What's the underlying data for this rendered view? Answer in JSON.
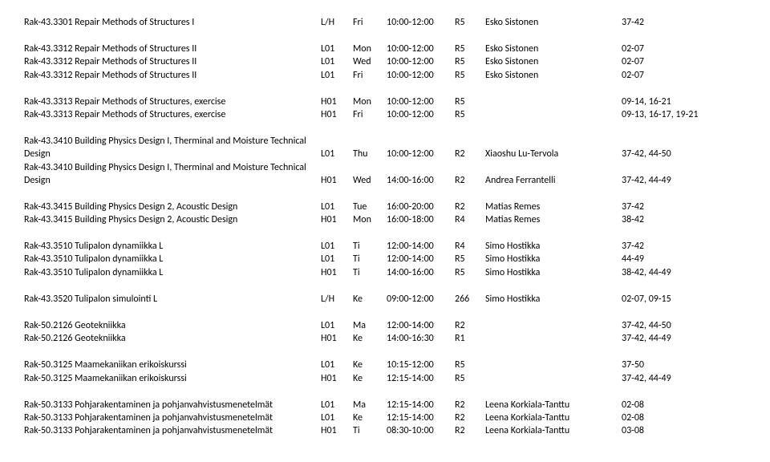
{
  "rows": [
    {
      "course": "Rak-43.3301 Repair Methods of Structures I",
      "type": "L/H",
      "day": "Fri",
      "time": "10:00-12:00",
      "room": "R5",
      "teacher": "Esko Sistonen",
      "weeks": "37-42"
    },
    null,
    {
      "course": "Rak-43.3312 Repair Methods of Structures II",
      "type": "L01",
      "day": "Mon",
      "time": "10:00-12:00",
      "room": "R5",
      "teacher": "Esko Sistonen",
      "weeks": "02-07"
    },
    {
      "course": "Rak-43.3312 Repair Methods of Structures II",
      "type": "L01",
      "day": "Wed",
      "time": "10:00-12:00",
      "room": "R5",
      "teacher": "Esko Sistonen",
      "weeks": "02-07"
    },
    {
      "course": "Rak-43.3312 Repair Methods of Structures II",
      "type": "L01",
      "day": "Fri",
      "time": "10:00-12:00",
      "room": "R5",
      "teacher": "Esko Sistonen",
      "weeks": "02-07"
    },
    null,
    {
      "course": "Rak-43.3313 Repair Methods of Structures, exercise",
      "type": "H01",
      "day": "Mon",
      "time": "10:00-12:00",
      "room": "R5",
      "teacher": "",
      "weeks": "09-14, 16-21"
    },
    {
      "course": "Rak-43.3313 Repair Methods of Structures, exercise",
      "type": "H01",
      "day": "Fri",
      "time": "10:00-12:00",
      "room": "R5",
      "teacher": "",
      "weeks": "09-13, 16-17, 19-21"
    },
    null,
    {
      "course": "Rak-43.3410 Building Physics Design I, Therminal and Moisture Technical",
      "cont": true
    },
    {
      "course": "Design",
      "type": "L01",
      "day": "Thu",
      "time": "10:00-12:00",
      "room": "R2",
      "teacher": "Xiaoshu Lu-Tervola",
      "weeks": "37-42, 44-50"
    },
    {
      "course": "Rak-43.3410 Building Physics Design I, Therminal and Moisture Technical",
      "cont": true
    },
    {
      "course": "Design",
      "type": "H01",
      "day": "Wed",
      "time": "14:00-16:00",
      "room": "R2",
      "teacher": "Andrea Ferrantelli",
      "weeks": "37-42, 44-49"
    },
    null,
    {
      "course": "Rak-43.3415 Building Physics Design 2, Acoustic Design",
      "type": "L01",
      "day": "Tue",
      "time": "16:00-20:00",
      "room": "R2",
      "teacher": "Matias Remes",
      "weeks": "37-42"
    },
    {
      "course": "Rak-43.3415 Building Physics Design 2, Acoustic Design",
      "type": "H01",
      "day": "Mon",
      "time": "16:00-18:00",
      "room": "R4",
      "teacher": "Matias Remes",
      "weeks": "38-42"
    },
    null,
    {
      "course": "Rak-43.3510 Tulipalon dynamiikka L",
      "type": "L01",
      "day": "Ti",
      "time": "12:00-14:00",
      "room": "R4",
      "teacher": "Simo Hostikka",
      "weeks": "37-42"
    },
    {
      "course": "Rak-43.3510 Tulipalon dynamiikka L",
      "type": "L01",
      "day": "Ti",
      "time": "12:00-14:00",
      "room": "R5",
      "teacher": "Simo Hostikka",
      "weeks": "44-49"
    },
    {
      "course": "Rak-43.3510 Tulipalon dynamiikka L",
      "type": "H01",
      "day": "Ti",
      "time": "14:00-16:00",
      "room": "R5",
      "teacher": "Simo Hostikka",
      "weeks": "38-42, 44-49"
    },
    null,
    {
      "course": "Rak-43.3520 Tulipalon simulointi L",
      "type": "L/H",
      "day": "Ke",
      "time": "09:00-12:00",
      "room": "266",
      "teacher": "Simo Hostikka",
      "weeks": "02-07, 09-15"
    },
    null,
    {
      "course": "Rak-50.2126 Geotekniikka",
      "type": "L01",
      "day": "Ma",
      "time": "12:00-14:00",
      "room": "R2",
      "teacher": "",
      "weeks": "37-42, 44-50"
    },
    {
      "course": "Rak-50.2126 Geotekniikka",
      "type": "H01",
      "day": "Ke",
      "time": "14:00-16:30",
      "room": "R1",
      "teacher": "",
      "weeks": "37-42, 44-49"
    },
    null,
    {
      "course": "Rak-50.3125 Maamekaniikan erikoiskurssi",
      "type": "L01",
      "day": "Ke",
      "time": "10:15-12:00",
      "room": "R5",
      "teacher": "",
      "weeks": "37-50"
    },
    {
      "course": "Rak-50.3125 Maamekaniikan erikoiskurssi",
      "type": "H01",
      "day": "Ke",
      "time": "12:15-14:00",
      "room": "R5",
      "teacher": "",
      "weeks": "37-42, 44-49"
    },
    null,
    {
      "course": "Rak-50.3133 Pohjarakentaminen ja pohjanvahvistusmenetelmät",
      "type": "L01",
      "day": "Ma",
      "time": "12:15-14:00",
      "room": "R2",
      "teacher": "Leena Korkiala-Tanttu",
      "weeks": "02-08"
    },
    {
      "course": "Rak-50.3133 Pohjarakentaminen ja pohjanvahvistusmenetelmät",
      "type": "L01",
      "day": "Ke",
      "time": "12:15-14:00",
      "room": "R2",
      "teacher": "Leena Korkiala-Tanttu",
      "weeks": "02-08"
    },
    {
      "course": "Rak-50.3133 Pohjarakentaminen ja pohjanvahvistusmenetelmät",
      "type": "H01",
      "day": "Ti",
      "time": "08:30-10:00",
      "room": "R2",
      "teacher": "Leena Korkiala-Tanttu",
      "weeks": "03-08"
    }
  ]
}
